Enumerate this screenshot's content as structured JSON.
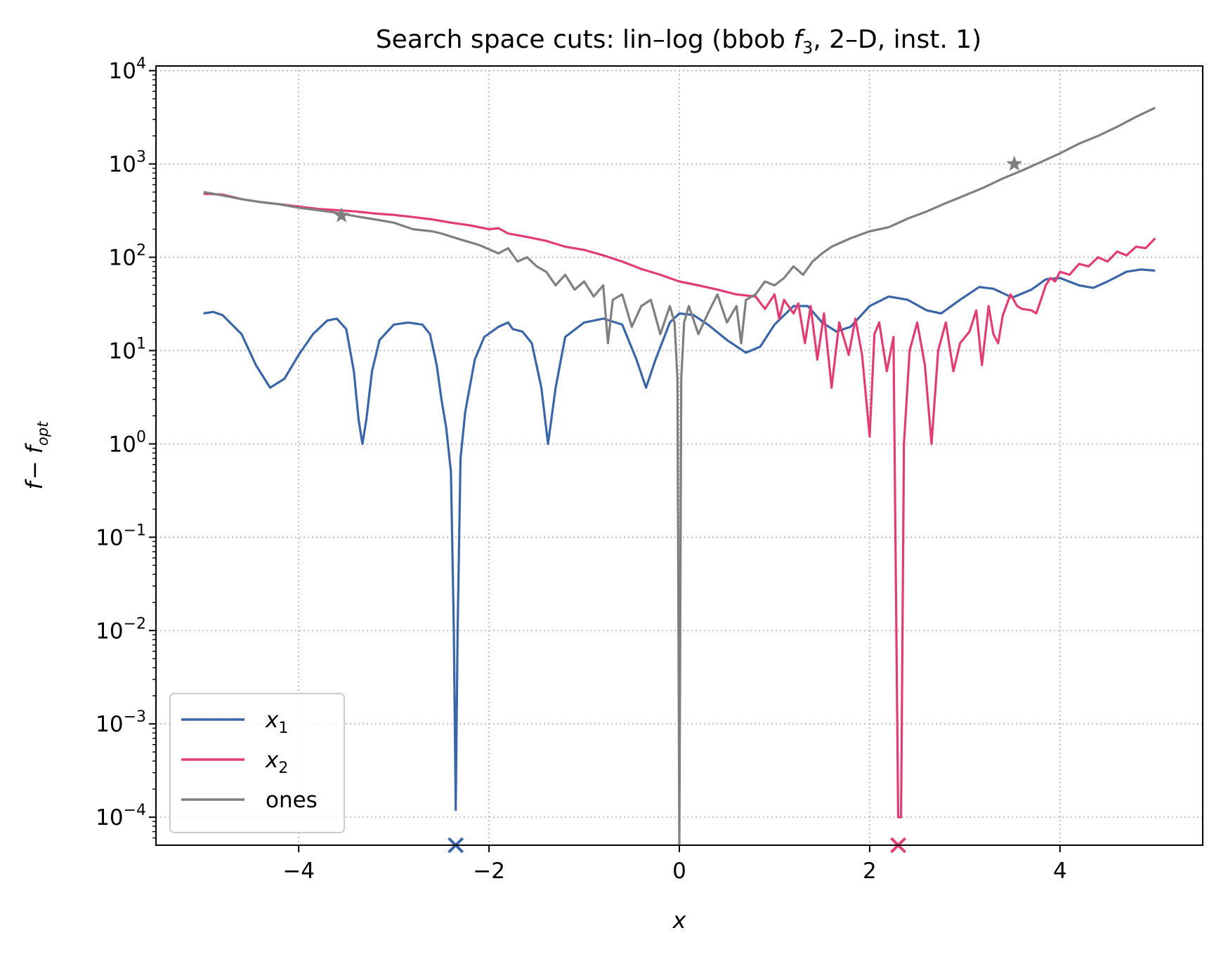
{
  "chart_data": {
    "type": "line",
    "title": "Search space cuts: lin–log (bbob f3, 2–D, inst. 1)",
    "title_parts": {
      "pre": "Search space cuts: lin–log (bbob ",
      "f": "f",
      "sub": "3",
      "post": ", 2–D, inst. 1)"
    },
    "xlabel": "x",
    "ylabel": {
      "f": "f",
      "sep": "− ",
      "f2": "f",
      "sub": "opt"
    },
    "xlim": [
      -5.5,
      5.5
    ],
    "ylim_log10": [
      -4.3,
      4.05
    ],
    "y_scale": "log",
    "grid": true,
    "grid_style": "dotted",
    "legend_position": "lower-left",
    "x_ticks": [
      -4,
      -2,
      0,
      2,
      4
    ],
    "x_tick_labels": [
      "−4",
      "−2",
      "0",
      "2",
      "4"
    ],
    "y_ticks": [
      {
        "exp": 4,
        "base": "10",
        "sup": "4"
      },
      {
        "exp": 3,
        "base": "10",
        "sup": "3"
      },
      {
        "exp": 2,
        "base": "10",
        "sup": "2"
      },
      {
        "exp": 1,
        "base": "10",
        "sup": "1"
      },
      {
        "exp": 0,
        "base": "10",
        "sup": "0"
      },
      {
        "exp": -1,
        "base": "10",
        "sup": "−1"
      },
      {
        "exp": -2,
        "base": "10",
        "sup": "−2"
      },
      {
        "exp": -3,
        "base": "10",
        "sup": "−3"
      },
      {
        "exp": -4,
        "base": "10",
        "sup": "−4"
      }
    ],
    "series": [
      {
        "name": "x1",
        "label_base": "x",
        "label_sub": "1",
        "color": "#3a66a8",
        "points": [
          [
            -5,
            25
          ],
          [
            -4.9,
            26
          ],
          [
            -4.8,
            24
          ],
          [
            -4.6,
            15
          ],
          [
            -4.45,
            7
          ],
          [
            -4.3,
            4
          ],
          [
            -4.15,
            5
          ],
          [
            -4,
            9
          ],
          [
            -3.85,
            15
          ],
          [
            -3.7,
            21
          ],
          [
            -3.6,
            22
          ],
          [
            -3.5,
            17
          ],
          [
            -3.42,
            6
          ],
          [
            -3.37,
            1.8
          ],
          [
            -3.33,
            1
          ],
          [
            -3.29,
            1.8
          ],
          [
            -3.23,
            6
          ],
          [
            -3.15,
            13
          ],
          [
            -3.0,
            19
          ],
          [
            -2.85,
            20
          ],
          [
            -2.7,
            19
          ],
          [
            -2.62,
            15
          ],
          [
            -2.55,
            7
          ],
          [
            -2.5,
            3
          ],
          [
            -2.45,
            1.5
          ],
          [
            -2.4,
            0.5
          ],
          [
            -2.37,
            0.01
          ],
          [
            -2.35,
            0.00012
          ],
          [
            -2.33,
            0.01
          ],
          [
            -2.3,
            0.7
          ],
          [
            -2.25,
            2.2
          ],
          [
            -2.15,
            8
          ],
          [
            -2.05,
            14
          ],
          [
            -1.9,
            18
          ],
          [
            -1.8,
            20
          ],
          [
            -1.75,
            17
          ],
          [
            -1.65,
            16
          ],
          [
            -1.55,
            12
          ],
          [
            -1.45,
            4
          ],
          [
            -1.38,
            1
          ],
          [
            -1.3,
            4
          ],
          [
            -1.2,
            14
          ],
          [
            -1.0,
            20
          ],
          [
            -0.8,
            22
          ],
          [
            -0.6,
            19
          ],
          [
            -0.45,
            8
          ],
          [
            -0.35,
            4
          ],
          [
            -0.25,
            8
          ],
          [
            -0.1,
            20
          ],
          [
            0.0,
            25
          ],
          [
            0.15,
            24
          ],
          [
            0.3,
            19
          ],
          [
            0.5,
            13
          ],
          [
            0.7,
            9.5
          ],
          [
            0.85,
            11
          ],
          [
            1.0,
            19
          ],
          [
            1.2,
            30
          ],
          [
            1.35,
            30
          ],
          [
            1.5,
            20
          ],
          [
            1.65,
            16
          ],
          [
            1.8,
            18
          ],
          [
            2.0,
            30
          ],
          [
            2.2,
            38
          ],
          [
            2.4,
            35
          ],
          [
            2.6,
            27
          ],
          [
            2.75,
            25
          ],
          [
            2.95,
            35
          ],
          [
            3.15,
            48
          ],
          [
            3.3,
            46
          ],
          [
            3.5,
            37
          ],
          [
            3.7,
            45
          ],
          [
            3.85,
            58
          ],
          [
            4.0,
            60
          ],
          [
            4.2,
            50
          ],
          [
            4.35,
            47
          ],
          [
            4.5,
            55
          ],
          [
            4.7,
            70
          ],
          [
            4.85,
            74
          ],
          [
            5.0,
            72
          ]
        ]
      },
      {
        "name": "x2",
        "label_base": "x",
        "label_sub": "2",
        "color": "#e23d72",
        "points": [
          [
            -5,
            480
          ],
          [
            -4.8,
            470
          ],
          [
            -4.6,
            420
          ],
          [
            -4.4,
            390
          ],
          [
            -4.2,
            370
          ],
          [
            -4.0,
            350
          ],
          [
            -3.8,
            330
          ],
          [
            -3.6,
            320
          ],
          [
            -3.4,
            310
          ],
          [
            -3.2,
            295
          ],
          [
            -3.0,
            285
          ],
          [
            -2.8,
            270
          ],
          [
            -2.6,
            255
          ],
          [
            -2.4,
            235
          ],
          [
            -2.2,
            220
          ],
          [
            -2.0,
            200
          ],
          [
            -1.9,
            205
          ],
          [
            -1.8,
            180
          ],
          [
            -1.6,
            165
          ],
          [
            -1.4,
            150
          ],
          [
            -1.2,
            130
          ],
          [
            -1.0,
            120
          ],
          [
            -0.8,
            105
          ],
          [
            -0.6,
            90
          ],
          [
            -0.4,
            75
          ],
          [
            -0.2,
            65
          ],
          [
            0.0,
            55
          ],
          [
            0.2,
            50
          ],
          [
            0.4,
            45
          ],
          [
            0.6,
            40
          ],
          [
            0.8,
            38
          ],
          [
            0.9,
            28
          ],
          [
            1.0,
            40
          ],
          [
            1.05,
            22
          ],
          [
            1.1,
            35
          ],
          [
            1.2,
            25
          ],
          [
            1.25,
            32
          ],
          [
            1.32,
            12
          ],
          [
            1.38,
            30
          ],
          [
            1.45,
            8
          ],
          [
            1.52,
            25
          ],
          [
            1.6,
            4
          ],
          [
            1.68,
            20
          ],
          [
            1.78,
            9
          ],
          [
            1.85,
            22
          ],
          [
            1.92,
            9
          ],
          [
            2.0,
            1.2
          ],
          [
            2.05,
            15
          ],
          [
            2.1,
            20
          ],
          [
            2.18,
            6
          ],
          [
            2.25,
            14
          ],
          [
            2.3,
            0.0001
          ],
          [
            2.33,
            0.0001
          ],
          [
            2.36,
            1
          ],
          [
            2.42,
            10
          ],
          [
            2.5,
            20
          ],
          [
            2.58,
            7
          ],
          [
            2.65,
            1
          ],
          [
            2.72,
            10
          ],
          [
            2.8,
            20
          ],
          [
            2.88,
            6
          ],
          [
            2.95,
            12
          ],
          [
            3.05,
            16
          ],
          [
            3.12,
            27
          ],
          [
            3.18,
            7
          ],
          [
            3.25,
            30
          ],
          [
            3.3,
            15
          ],
          [
            3.35,
            12
          ],
          [
            3.4,
            24
          ],
          [
            3.48,
            40
          ],
          [
            3.55,
            30
          ],
          [
            3.6,
            28
          ],
          [
            3.7,
            27
          ],
          [
            3.75,
            25
          ],
          [
            3.8,
            35
          ],
          [
            3.85,
            50
          ],
          [
            3.9,
            60
          ],
          [
            3.95,
            55
          ],
          [
            4.0,
            70
          ],
          [
            4.1,
            65
          ],
          [
            4.2,
            85
          ],
          [
            4.3,
            80
          ],
          [
            4.4,
            100
          ],
          [
            4.5,
            90
          ],
          [
            4.6,
            115
          ],
          [
            4.7,
            105
          ],
          [
            4.8,
            130
          ],
          [
            4.9,
            125
          ],
          [
            5.0,
            160
          ]
        ]
      },
      {
        "name": "ones",
        "label_base": "ones",
        "label_sub": "",
        "color": "#7f7f7f",
        "points": [
          [
            -5,
            500
          ],
          [
            -4.9,
            480
          ],
          [
            -4.8,
            460
          ],
          [
            -4.6,
            420
          ],
          [
            -4.4,
            390
          ],
          [
            -4.2,
            370
          ],
          [
            -4.0,
            340
          ],
          [
            -3.8,
            320
          ],
          [
            -3.6,
            300
          ],
          [
            -3.4,
            275
          ],
          [
            -3.2,
            255
          ],
          [
            -3.0,
            235
          ],
          [
            -2.8,
            200
          ],
          [
            -2.6,
            190
          ],
          [
            -2.5,
            180
          ],
          [
            -2.3,
            155
          ],
          [
            -2.1,
            135
          ],
          [
            -1.9,
            110
          ],
          [
            -1.8,
            125
          ],
          [
            -1.7,
            90
          ],
          [
            -1.6,
            100
          ],
          [
            -1.5,
            80
          ],
          [
            -1.4,
            70
          ],
          [
            -1.3,
            50
          ],
          [
            -1.2,
            65
          ],
          [
            -1.1,
            45
          ],
          [
            -1.0,
            55
          ],
          [
            -0.9,
            38
          ],
          [
            -0.8,
            50
          ],
          [
            -0.75,
            12
          ],
          [
            -0.7,
            35
          ],
          [
            -0.6,
            40
          ],
          [
            -0.5,
            18
          ],
          [
            -0.4,
            30
          ],
          [
            -0.3,
            35
          ],
          [
            -0.2,
            15
          ],
          [
            -0.1,
            30
          ],
          [
            -0.05,
            20
          ],
          [
            -0.02,
            5
          ],
          [
            0.0,
            5e-05
          ],
          [
            0.02,
            5
          ],
          [
            0.05,
            20
          ],
          [
            0.1,
            30
          ],
          [
            0.2,
            15
          ],
          [
            0.3,
            25
          ],
          [
            0.4,
            40
          ],
          [
            0.5,
            20
          ],
          [
            0.6,
            30
          ],
          [
            0.65,
            12
          ],
          [
            0.7,
            35
          ],
          [
            0.8,
            40
          ],
          [
            0.9,
            55
          ],
          [
            1.0,
            50
          ],
          [
            1.1,
            60
          ],
          [
            1.2,
            80
          ],
          [
            1.3,
            65
          ],
          [
            1.4,
            90
          ],
          [
            1.5,
            110
          ],
          [
            1.6,
            130
          ],
          [
            1.8,
            160
          ],
          [
            2.0,
            190
          ],
          [
            2.2,
            210
          ],
          [
            2.4,
            260
          ],
          [
            2.6,
            310
          ],
          [
            2.8,
            380
          ],
          [
            3.0,
            460
          ],
          [
            3.2,
            560
          ],
          [
            3.4,
            700
          ],
          [
            3.6,
            850
          ],
          [
            3.8,
            1050
          ],
          [
            4.0,
            1300
          ],
          [
            4.2,
            1650
          ],
          [
            4.4,
            2000
          ],
          [
            4.6,
            2500
          ],
          [
            4.8,
            3200
          ],
          [
            5.0,
            4000
          ]
        ]
      }
    ],
    "markers": [
      {
        "series": "x1",
        "shape": "x",
        "x": -2.35,
        "y": 5e-05,
        "color": "#3a66a8"
      },
      {
        "series": "x2",
        "shape": "x",
        "x": 2.3,
        "y": 5e-05,
        "color": "#e23d72"
      },
      {
        "series": "ones",
        "shape": "star",
        "x": -3.55,
        "y": 280,
        "color": "#7f7f7f"
      },
      {
        "series": "ones",
        "shape": "star",
        "x": 3.52,
        "y": 1000,
        "color": "#7f7f7f"
      }
    ]
  }
}
